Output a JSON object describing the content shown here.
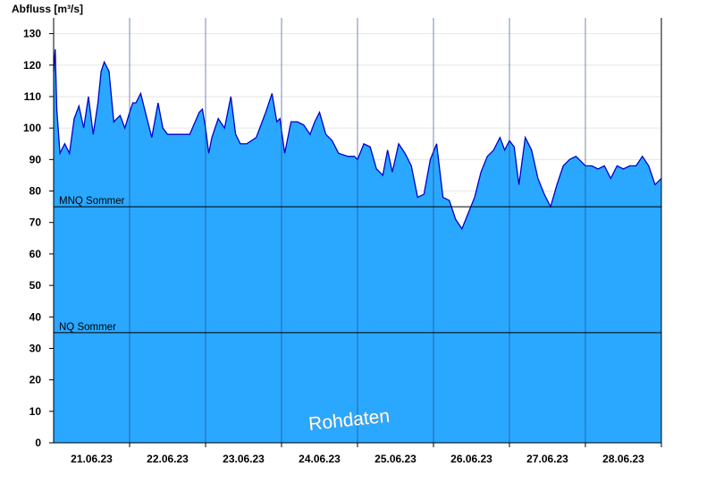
{
  "chart_data": {
    "type": "area",
    "ylabel": "Abfluss [m³/s]",
    "ylim": [
      0,
      135
    ],
    "yticks": [
      0,
      10,
      20,
      30,
      40,
      50,
      60,
      70,
      80,
      90,
      100,
      110,
      120,
      130
    ],
    "x_range": [
      "2023-06-20T12:00",
      "2023-06-28T12:00"
    ],
    "xtick_labels": [
      "21.06.23",
      "22.06.23",
      "23.06.23",
      "24.06.23",
      "25.06.23",
      "26.06.23",
      "27.06.23",
      "28.06.23"
    ],
    "day_boundaries": [
      "2023-06-21T12:00",
      "2023-06-22T12:00",
      "2023-06-23T12:00",
      "2023-06-24T12:00",
      "2023-06-25T12:00",
      "2023-06-26T12:00",
      "2023-06-27T12:00",
      "2023-06-28T12:00"
    ],
    "grid": true,
    "fill_color": "#2aa8ff",
    "line_color": "#0000cc",
    "series": [
      {
        "x": [
          "2023-06-20T12:00",
          "2023-06-20T12:30",
          "2023-06-20T13:00",
          "2023-06-20T14:00",
          "2023-06-20T15:30",
          "2023-06-20T17:00",
          "2023-06-20T18:30",
          "2023-06-20T20:00",
          "2023-06-20T21:30",
          "2023-06-20T23:00",
          "2023-06-21T00:30",
          "2023-06-21T02:00",
          "2023-06-21T03:00",
          "2023-06-21T04:00",
          "2023-06-21T05:30",
          "2023-06-21T07:00",
          "2023-06-21T09:00",
          "2023-06-21T10:30",
          "2023-06-21T12:00",
          "2023-06-21T13:00",
          "2023-06-21T14:00",
          "2023-06-21T15:30",
          "2023-06-21T17:00",
          "2023-06-21T19:00",
          "2023-06-21T21:00",
          "2023-06-21T22:30",
          "2023-06-22T00:00",
          "2023-06-22T02:00",
          "2023-06-22T04:00",
          "2023-06-22T07:00",
          "2023-06-22T10:00",
          "2023-06-22T11:00",
          "2023-06-22T12:00",
          "2023-06-22T13:00",
          "2023-06-22T14:00",
          "2023-06-22T16:00",
          "2023-06-22T18:00",
          "2023-06-22T20:00",
          "2023-06-22T21:30",
          "2023-06-22T23:00",
          "2023-06-23T01:00",
          "2023-06-23T04:00",
          "2023-06-23T07:00",
          "2023-06-23T09:00",
          "2023-06-23T10:30",
          "2023-06-23T11:30",
          "2023-06-23T13:00",
          "2023-06-23T15:00",
          "2023-06-23T17:00",
          "2023-06-23T19:00",
          "2023-06-23T21:00",
          "2023-06-23T22:30",
          "2023-06-24T00:00",
          "2023-06-24T02:00",
          "2023-06-24T04:00",
          "2023-06-24T06:00",
          "2023-06-24T09:00",
          "2023-06-24T11:00",
          "2023-06-24T12:00",
          "2023-06-24T14:00",
          "2023-06-24T16:00",
          "2023-06-24T18:00",
          "2023-06-24T20:00",
          "2023-06-24T21:30",
          "2023-06-24T23:00",
          "2023-06-25T01:00",
          "2023-06-25T03:00",
          "2023-06-25T05:00",
          "2023-06-25T07:00",
          "2023-06-25T09:00",
          "2023-06-25T11:00",
          "2023-06-25T13:00",
          "2023-06-25T15:00",
          "2023-06-25T17:00",
          "2023-06-25T19:00",
          "2023-06-25T21:00",
          "2023-06-25T23:00",
          "2023-06-26T01:00",
          "2023-06-26T03:00",
          "2023-06-26T05:00",
          "2023-06-26T07:00",
          "2023-06-26T09:00",
          "2023-06-26T10:30",
          "2023-06-26T12:00",
          "2023-06-26T13:30",
          "2023-06-26T15:00",
          "2023-06-26T17:00",
          "2023-06-26T19:00",
          "2023-06-26T21:00",
          "2023-06-26T23:00",
          "2023-06-27T01:00",
          "2023-06-27T03:00",
          "2023-06-27T05:00",
          "2023-06-27T07:00",
          "2023-06-27T09:00",
          "2023-06-27T11:00",
          "2023-06-27T12:00",
          "2023-06-27T14:00",
          "2023-06-27T16:00",
          "2023-06-27T18:00",
          "2023-06-27T20:00",
          "2023-06-27T22:00",
          "2023-06-28T00:00",
          "2023-06-28T02:00",
          "2023-06-28T04:00",
          "2023-06-28T06:00",
          "2023-06-28T08:00",
          "2023-06-28T10:00",
          "2023-06-28T12:00"
        ],
        "y": [
          118,
          125,
          106,
          92,
          95,
          92,
          103,
          107,
          100,
          110,
          98,
          108,
          118,
          121,
          118,
          102,
          104,
          100,
          105,
          108,
          108,
          111,
          105,
          97,
          108,
          100,
          98,
          98,
          98,
          98,
          105,
          106,
          100,
          92,
          97,
          103,
          100,
          110,
          98,
          95,
          95,
          97,
          105,
          111,
          102,
          103,
          92,
          102,
          102,
          101,
          98,
          102,
          105,
          98,
          96,
          92,
          91,
          91,
          90,
          95,
          94,
          87,
          85,
          93,
          86,
          95,
          92,
          88,
          78,
          79,
          90,
          95,
          78,
          77,
          71,
          68,
          73,
          78,
          86,
          91,
          93,
          97,
          93,
          96,
          94,
          82,
          97,
          93,
          84,
          79,
          75,
          82,
          88,
          90,
          91,
          89,
          88,
          88,
          87,
          88,
          84,
          88,
          87,
          88,
          88,
          91,
          88,
          82,
          84
        ],
        "y_note": null
      }
    ],
    "reference_lines": [
      {
        "label": "MNQ Sommer",
        "value": 75
      },
      {
        "label": "NQ Sommer",
        "value": 35
      }
    ],
    "watermark": "Rohdaten"
  }
}
